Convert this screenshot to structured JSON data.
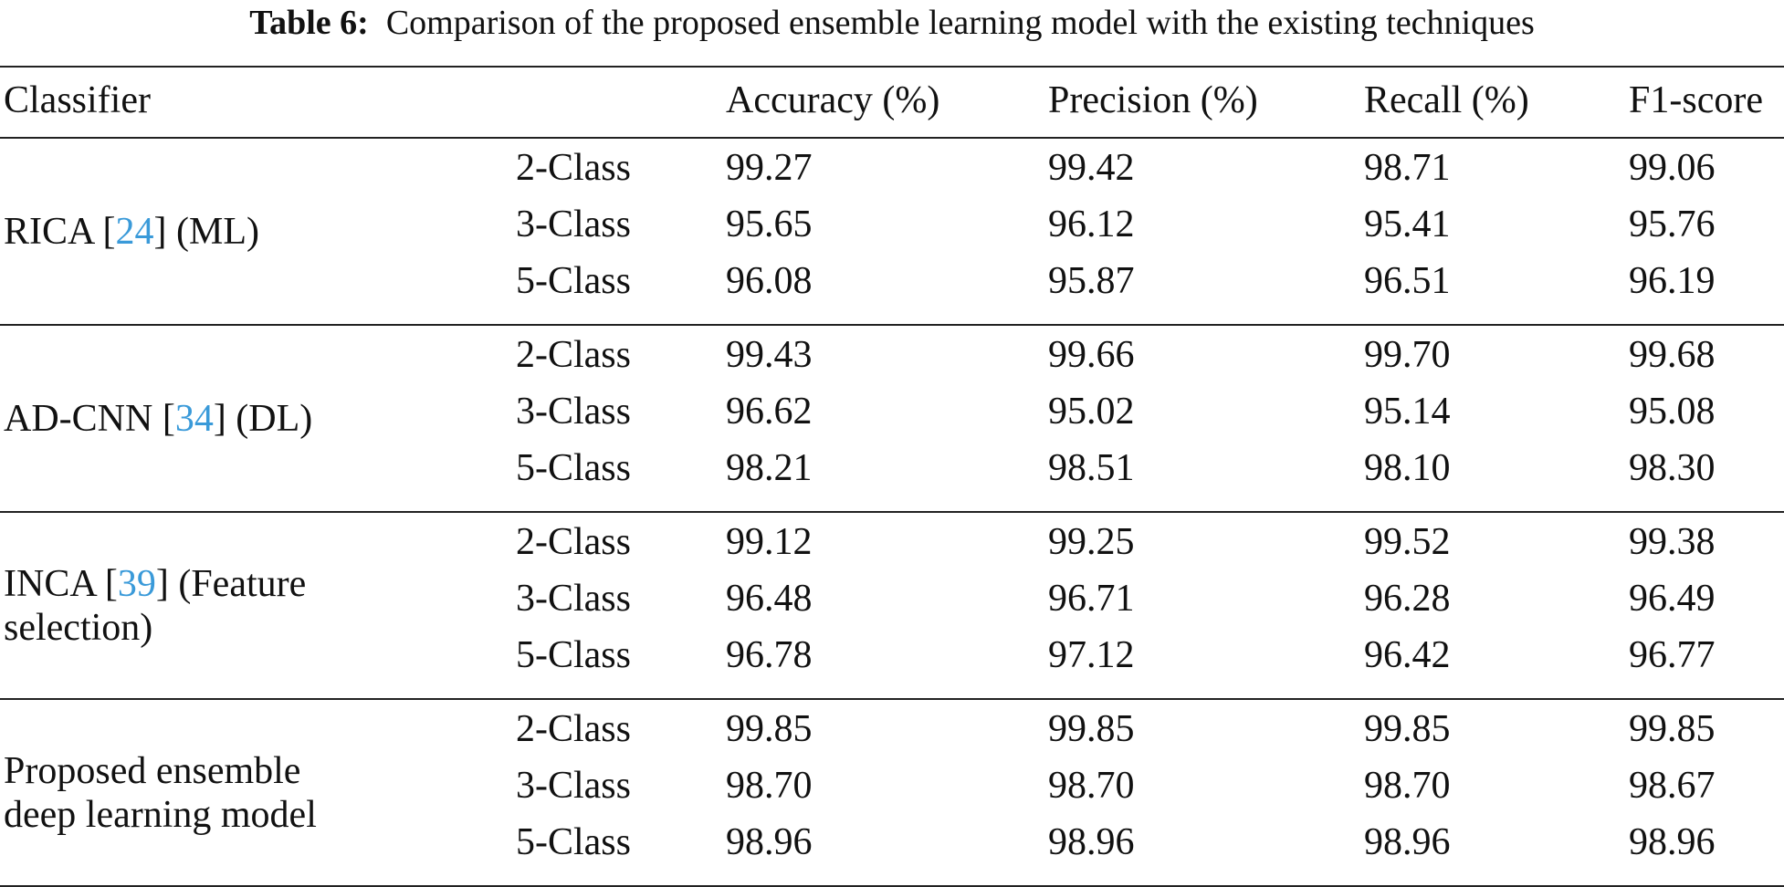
{
  "caption": {
    "label": "Table 6:",
    "text": "Comparison of the proposed ensemble learning model with the existing techniques"
  },
  "headers": [
    "Classifier",
    "",
    "Accuracy (%)",
    "Precision (%)",
    "Recall (%)",
    "F1-score"
  ],
  "groups": [
    {
      "name_pre": "RICA [",
      "ref": "24",
      "name_post": "] (ML)",
      "rows": [
        {
          "cls": "2-Class",
          "acc": "99.27",
          "prec": "99.42",
          "rec": "98.71",
          "f1": "99.06"
        },
        {
          "cls": "3-Class",
          "acc": "95.65",
          "prec": "96.12",
          "rec": "95.41",
          "f1": "95.76"
        },
        {
          "cls": "5-Class",
          "acc": "96.08",
          "prec": "95.87",
          "rec": "96.51",
          "f1": "96.19"
        }
      ]
    },
    {
      "name_pre": "AD-CNN [",
      "ref": "34",
      "name_post": "] (DL)",
      "rows": [
        {
          "cls": "2-Class",
          "acc": "99.43",
          "prec": "99.66",
          "rec": "99.70",
          "f1": "99.68"
        },
        {
          "cls": "3-Class",
          "acc": "96.62",
          "prec": "95.02",
          "rec": "95.14",
          "f1": "95.08"
        },
        {
          "cls": "5-Class",
          "acc": "98.21",
          "prec": "98.51",
          "rec": "98.10",
          "f1": "98.30"
        }
      ]
    },
    {
      "name_pre": "INCA [",
      "ref": "39",
      "name_post": "] (Feature",
      "name_line2": "selection)",
      "rows": [
        {
          "cls": "2-Class",
          "acc": "99.12",
          "prec": "99.25",
          "rec": "99.52",
          "f1": "99.38"
        },
        {
          "cls": "3-Class",
          "acc": "96.48",
          "prec": "96.71",
          "rec": "96.28",
          "f1": "96.49"
        },
        {
          "cls": "5-Class",
          "acc": "96.78",
          "prec": "97.12",
          "rec": "96.42",
          "f1": "96.77"
        }
      ]
    },
    {
      "name_pre": "Proposed ensemble",
      "name_line2": "deep learning model",
      "rows": [
        {
          "cls": "2-Class",
          "acc": "99.85",
          "prec": "99.85",
          "rec": "99.85",
          "f1": "99.85"
        },
        {
          "cls": "3-Class",
          "acc": "98.70",
          "prec": "98.70",
          "rec": "98.70",
          "f1": "98.67"
        },
        {
          "cls": "5-Class",
          "acc": "98.96",
          "prec": "98.96",
          "rec": "98.96",
          "f1": "98.96"
        }
      ]
    }
  ]
}
